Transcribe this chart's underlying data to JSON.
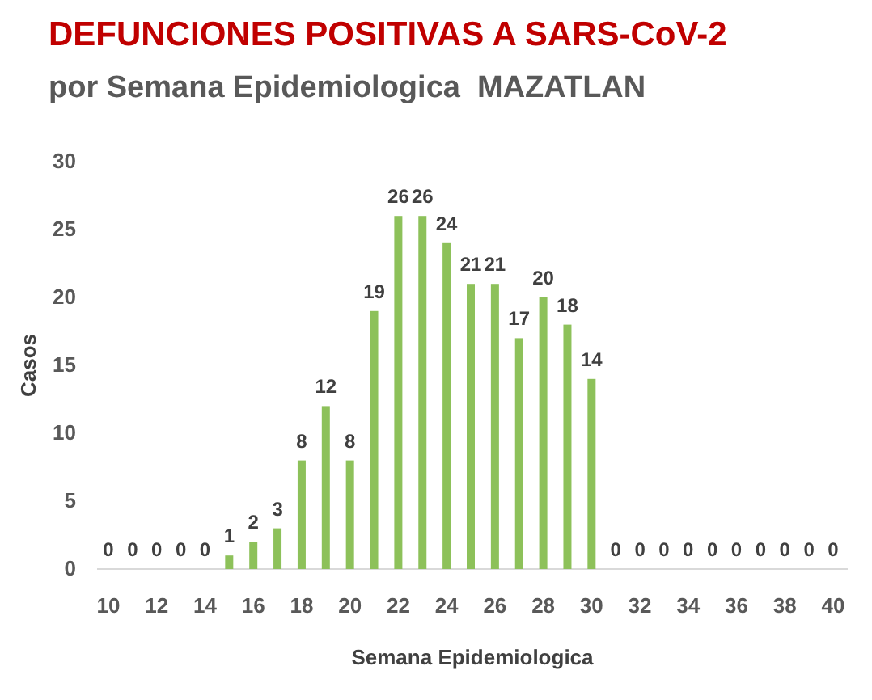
{
  "chart_data": {
    "type": "bar",
    "title": "DEFUNCIONES POSITIVAS A SARS-CoV-2",
    "subtitle": "por Semana Epidemiologica  MAZATLAN",
    "xlabel": "Semana Epidemiologica",
    "ylabel": "Casos",
    "categories": [
      "10",
      null,
      "12",
      null,
      "14",
      null,
      "16",
      null,
      "18",
      null,
      "20",
      null,
      "22",
      null,
      "24",
      null,
      "26",
      null,
      "28",
      null,
      "30",
      null,
      "32",
      null,
      "34",
      null,
      "36",
      null,
      "38",
      null,
      "40"
    ],
    "values": [
      0,
      0,
      0,
      0,
      0,
      1,
      2,
      3,
      8,
      12,
      8,
      19,
      26,
      26,
      24,
      21,
      21,
      17,
      20,
      18,
      14,
      0,
      0,
      0,
      0,
      0,
      0,
      0,
      0,
      0,
      0
    ],
    "color": "#8dc15a",
    "ylim": [
      0,
      30
    ],
    "yticks": [
      0,
      5,
      10,
      15,
      20,
      25,
      30
    ],
    "data_labels": true,
    "grid": false
  }
}
